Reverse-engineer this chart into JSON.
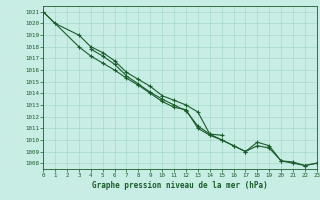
{
  "title": "Graphe pression niveau de la mer (hPa)",
  "bg_color": "#c8ede4",
  "grid_color": "#a8d8cc",
  "line_color": "#1a5c2a",
  "s1_x": [
    0,
    1,
    3,
    4,
    5,
    6,
    7,
    8,
    9,
    10,
    11,
    12,
    13,
    14,
    15
  ],
  "s1_y": [
    1021.0,
    1020.0,
    1019.0,
    1018.0,
    1017.5,
    1016.8,
    1015.8,
    1015.2,
    1014.6,
    1013.8,
    1013.4,
    1013.0,
    1012.4,
    1010.5,
    1010.4
  ],
  "s2_x": [
    0,
    3,
    4,
    5,
    6,
    7,
    8,
    9,
    10,
    11,
    12,
    13,
    14,
    15,
    16,
    17,
    18,
    19,
    20,
    21,
    22,
    23
  ],
  "s2_y": [
    1021.0,
    1018.0,
    1017.2,
    1016.6,
    1016.0,
    1015.3,
    1014.7,
    1014.0,
    1013.3,
    1012.8,
    1012.6,
    1011.0,
    1010.4,
    1010.0,
    1009.5,
    1009.0,
    1009.5,
    1009.3,
    1008.2,
    1008.1,
    1007.8,
    1008.0
  ],
  "s3_x": [
    4,
    5,
    6,
    7,
    8,
    9,
    10,
    11,
    12,
    13,
    14,
    15,
    16,
    17,
    18,
    19,
    20,
    21,
    22,
    23
  ],
  "s3_y": [
    1017.8,
    1017.2,
    1016.5,
    1015.5,
    1014.8,
    1014.1,
    1013.5,
    1013.0,
    1012.5,
    1011.2,
    1010.5,
    1010.0,
    1009.5,
    1009.0,
    1009.8,
    1009.5,
    1008.2,
    1008.0,
    1007.8,
    1008.0
  ],
  "xlim": [
    0,
    23
  ],
  "ylim": [
    1007.5,
    1021.5
  ],
  "yticks": [
    1008,
    1009,
    1010,
    1011,
    1012,
    1013,
    1014,
    1015,
    1016,
    1017,
    1018,
    1019,
    1020,
    1021
  ],
  "xticks": [
    0,
    1,
    2,
    3,
    4,
    5,
    6,
    7,
    8,
    9,
    10,
    11,
    12,
    13,
    14,
    15,
    16,
    17,
    18,
    19,
    20,
    21,
    22,
    23
  ]
}
